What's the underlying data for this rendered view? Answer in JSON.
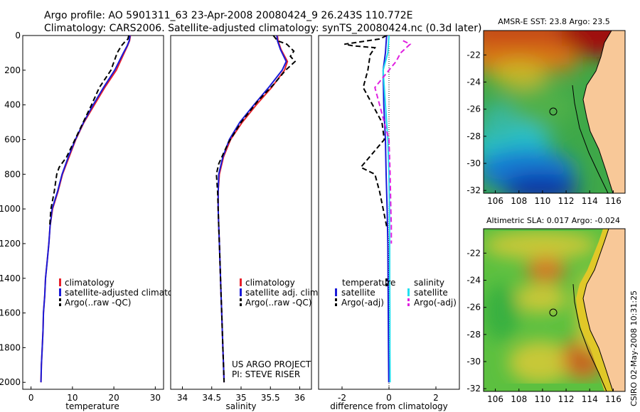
{
  "header": {
    "line1": "Argo profile: AO 5901311_63 23-Apr-2008 20080424_9 26.243S 110.772E",
    "line2": "Climatology: CARS2006. Satellite-adjusted climatology: synTS_20080424.nc (0.3d later)"
  },
  "credit": "CSIRO 02-May-2008 10:31:25",
  "colors": {
    "climatology": "#e8202a",
    "satellite": "#1a1ad8",
    "argo": "#000000",
    "salinity_satellite": "#22e0f0",
    "salinity_argo": "#e020e0",
    "land": "#f8c898"
  },
  "chart_data": [
    {
      "type": "line",
      "xlabel": "temperature",
      "xlim": [
        -2,
        32
      ],
      "ylim": [
        2040,
        0
      ],
      "xticks": [
        "0",
        "10",
        "20",
        "30"
      ],
      "yticks": [
        "0",
        "200",
        "400",
        "600",
        "800",
        "1000",
        "1200",
        "1400",
        "1600",
        "1800",
        "2000"
      ],
      "legend": [
        "climatology",
        "satellite-adjusted climatology",
        "Argo(..raw -QC)"
      ],
      "series": [
        {
          "name": "climatology",
          "style": "solid",
          "color": "#e8202a",
          "points": [
            [
              24,
              0
            ],
            [
              23.8,
              30
            ],
            [
              23.3,
              60
            ],
            [
              22.5,
              100
            ],
            [
              20.6,
              200
            ],
            [
              17.8,
              300
            ],
            [
              15.3,
              400
            ],
            [
              12.8,
              500
            ],
            [
              10.8,
              600
            ],
            [
              9.2,
              700
            ],
            [
              7.6,
              800
            ],
            [
              6.5,
              900
            ],
            [
              5.2,
              1000
            ],
            [
              4.6,
              1100
            ],
            [
              4.3,
              1200
            ],
            [
              3.9,
              1300
            ],
            [
              3.5,
              1400
            ],
            [
              3.3,
              1500
            ],
            [
              3.0,
              1600
            ],
            [
              2.9,
              1700
            ],
            [
              2.7,
              1800
            ],
            [
              2.5,
              1900
            ],
            [
              2.4,
              2000
            ]
          ]
        },
        {
          "name": "satellite-adjusted climatology",
          "style": "solid",
          "color": "#1a1ad8",
          "points": [
            [
              23.9,
              0
            ],
            [
              23.7,
              30
            ],
            [
              23.2,
              60
            ],
            [
              22.3,
              100
            ],
            [
              20.2,
              200
            ],
            [
              17.5,
              300
            ],
            [
              15.0,
              400
            ],
            [
              12.7,
              500
            ],
            [
              10.7,
              600
            ],
            [
              9.0,
              700
            ],
            [
              7.5,
              800
            ],
            [
              6.4,
              900
            ],
            [
              5.1,
              1000
            ],
            [
              4.6,
              1100
            ],
            [
              4.3,
              1200
            ],
            [
              3.9,
              1300
            ],
            [
              3.5,
              1400
            ],
            [
              3.3,
              1500
            ],
            [
              3.0,
              1600
            ],
            [
              2.9,
              1700
            ],
            [
              2.7,
              1800
            ],
            [
              2.5,
              1900
            ],
            [
              2.4,
              2000
            ]
          ]
        },
        {
          "name": "Argo(..raw -QC)",
          "style": "dashed",
          "color": "#000000",
          "points": [
            [
              23.6,
              0
            ],
            [
              23.4,
              20
            ],
            [
              22.5,
              40
            ],
            [
              21.8,
              60
            ],
            [
              20.8,
              100
            ],
            [
              19.3,
              200
            ],
            [
              16.5,
              300
            ],
            [
              14.6,
              400
            ],
            [
              12.6,
              500
            ],
            [
              10.6,
              600
            ],
            [
              8.6,
              700
            ],
            [
              6.8,
              760
            ],
            [
              6.2,
              800
            ],
            [
              5.6,
              900
            ],
            [
              4.8,
              1000
            ],
            [
              4.5,
              1100
            ]
          ]
        }
      ]
    },
    {
      "type": "line",
      "xlabel": "salinity",
      "xlim": [
        33.8,
        36.2
      ],
      "ylim": [
        2040,
        0
      ],
      "xticks": [
        "34",
        "34.5",
        "35",
        "35.5",
        "36"
      ],
      "legend": [
        "climatology",
        "satellite adj. clim.",
        "Argo(..raw -QC)"
      ],
      "annotation": [
        "US ARGO PROJECT",
        "PI: STEVE RISER"
      ],
      "series": [
        {
          "name": "climatology",
          "style": "solid",
          "color": "#e8202a",
          "points": [
            [
              35.62,
              0
            ],
            [
              35.63,
              30
            ],
            [
              35.68,
              80
            ],
            [
              35.79,
              150
            ],
            [
              35.74,
              200
            ],
            [
              35.52,
              300
            ],
            [
              35.26,
              400
            ],
            [
              35.02,
              500
            ],
            [
              34.82,
              600
            ],
            [
              34.7,
              700
            ],
            [
              34.63,
              800
            ],
            [
              34.61,
              900
            ],
            [
              34.61,
              1000
            ],
            [
              34.62,
              1100
            ],
            [
              34.63,
              1200
            ],
            [
              34.64,
              1300
            ],
            [
              34.65,
              1400
            ],
            [
              34.66,
              1500
            ],
            [
              34.67,
              1600
            ],
            [
              34.68,
              1700
            ],
            [
              34.69,
              1800
            ],
            [
              34.7,
              1900
            ],
            [
              34.71,
              2000
            ]
          ]
        },
        {
          "name": "satellite adj. clim.",
          "style": "solid",
          "color": "#1a1ad8",
          "points": [
            [
              35.61,
              0
            ],
            [
              35.62,
              30
            ],
            [
              35.67,
              80
            ],
            [
              35.77,
              150
            ],
            [
              35.7,
              200
            ],
            [
              35.47,
              300
            ],
            [
              35.22,
              400
            ],
            [
              34.98,
              500
            ],
            [
              34.8,
              600
            ],
            [
              34.69,
              700
            ],
            [
              34.62,
              800
            ],
            [
              34.61,
              900
            ],
            [
              34.61,
              1000
            ],
            [
              34.62,
              1100
            ],
            [
              34.63,
              1200
            ],
            [
              34.64,
              1300
            ],
            [
              34.65,
              1400
            ],
            [
              34.66,
              1500
            ],
            [
              34.67,
              1600
            ],
            [
              34.68,
              1700
            ],
            [
              34.69,
              1800
            ],
            [
              34.7,
              1900
            ],
            [
              34.71,
              2000
            ]
          ]
        },
        {
          "name": "Argo(..raw -QC)",
          "style": "dashed",
          "color": "#000000",
          "points": [
            [
              35.55,
              0
            ],
            [
              35.62,
              30
            ],
            [
              35.78,
              50
            ],
            [
              35.9,
              90
            ],
            [
              35.84,
              120
            ],
            [
              35.92,
              150
            ],
            [
              35.76,
              200
            ],
            [
              35.56,
              280
            ],
            [
              35.28,
              380
            ],
            [
              35.0,
              500
            ],
            [
              34.78,
              620
            ],
            [
              34.62,
              740
            ],
            [
              34.58,
              800
            ],
            [
              34.6,
              900
            ],
            [
              34.61,
              1000
            ],
            [
              34.62,
              1100
            ],
            [
              34.63,
              1200
            ],
            [
              34.64,
              1300
            ],
            [
              34.65,
              1400
            ],
            [
              34.66,
              1500
            ],
            [
              34.67,
              1600
            ],
            [
              34.68,
              1700
            ],
            [
              34.69,
              1800
            ],
            [
              34.7,
              1900
            ],
            [
              34.71,
              2000
            ]
          ]
        }
      ]
    },
    {
      "type": "line",
      "xlabel": "difference from climatology",
      "xlim": [
        -3,
        3
      ],
      "ylim": [
        2040,
        0
      ],
      "xticks": [
        "-2",
        "0",
        "2"
      ],
      "legend_temperature": [
        "temperature",
        "satellite",
        "Argo(-adj)"
      ],
      "legend_salinity": [
        "salinity",
        "satellite",
        "Argo(-adj)"
      ],
      "series": [
        {
          "name": "temperature satellite",
          "style": "solid",
          "color": "#1a1ad8",
          "points": [
            [
              -0.1,
              0
            ],
            [
              -0.15,
              100
            ],
            [
              -0.25,
              200
            ],
            [
              -0.22,
              400
            ],
            [
              -0.15,
              600
            ],
            [
              -0.12,
              800
            ],
            [
              -0.08,
              1000
            ],
            [
              -0.05,
              1200
            ],
            [
              -0.04,
              1400
            ],
            [
              -0.03,
              1600
            ],
            [
              -0.02,
              1800
            ],
            [
              -0.01,
              2000
            ]
          ]
        },
        {
          "name": "temperature Argo(-adj)",
          "style": "dashed",
          "color": "#000000",
          "points": [
            [
              -0.1,
              0
            ],
            [
              -0.4,
              20
            ],
            [
              -1.9,
              50
            ],
            [
              -1.5,
              60
            ],
            [
              -0.6,
              70
            ],
            [
              -0.8,
              110
            ],
            [
              -0.9,
              200
            ],
            [
              -1.1,
              300
            ],
            [
              -0.7,
              400
            ],
            [
              -0.3,
              500
            ],
            [
              -0.2,
              600
            ],
            [
              -1.2,
              760
            ],
            [
              -0.6,
              800
            ],
            [
              -0.4,
              900
            ],
            [
              -0.25,
              1000
            ],
            [
              -0.1,
              1100
            ]
          ]
        },
        {
          "name": "salinity satellite",
          "style": "solid",
          "color": "#22e0f0",
          "points": [
            [
              0.0,
              0
            ],
            [
              -0.05,
              100
            ],
            [
              -0.25,
              200
            ],
            [
              -0.15,
              400
            ],
            [
              -0.05,
              600
            ],
            [
              0.0,
              800
            ],
            [
              0.02,
              1000
            ],
            [
              0.03,
              1200
            ],
            [
              0.03,
              1400
            ],
            [
              0.04,
              1600
            ],
            [
              0.04,
              1800
            ],
            [
              0.05,
              2000
            ]
          ]
        },
        {
          "name": "salinity Argo(-adj)",
          "style": "dashed",
          "color": "#e020e0",
          "points": [
            [
              0.6,
              30
            ],
            [
              0.9,
              50
            ],
            [
              0.5,
              100
            ],
            [
              0.3,
              150
            ],
            [
              -0.6,
              300
            ],
            [
              -0.4,
              400
            ],
            [
              -0.2,
              500
            ],
            [
              0.0,
              600
            ],
            [
              0.05,
              800
            ],
            [
              0.08,
              1000
            ],
            [
              0.1,
              1100
            ],
            [
              0.1,
              1200
            ]
          ]
        }
      ]
    }
  ],
  "maps": [
    {
      "title": "AMSR-E SST: 23.8 Argo: 23.5",
      "xticks": [
        "106",
        "108",
        "110",
        "112",
        "114",
        "116"
      ],
      "yticks": [
        "-22",
        "-24",
        "-26",
        "-28",
        "-30",
        "-32"
      ],
      "xlim": [
        105,
        117
      ],
      "ylim": [
        -32.2,
        -20.2
      ],
      "argo_position": [
        110.772,
        -26.243
      ]
    },
    {
      "title": "Altimetric SLA: 0.017 Argo: -0.024",
      "xticks": [
        "106",
        "108",
        "110",
        "112",
        "114",
        "116"
      ],
      "yticks": [
        "-22",
        "-24",
        "-26",
        "-28",
        "-30",
        "-32"
      ],
      "xlim": [
        105,
        117
      ],
      "ylim": [
        -32.2,
        -20.2
      ],
      "argo_position": [
        110.772,
        -26.243
      ]
    }
  ]
}
